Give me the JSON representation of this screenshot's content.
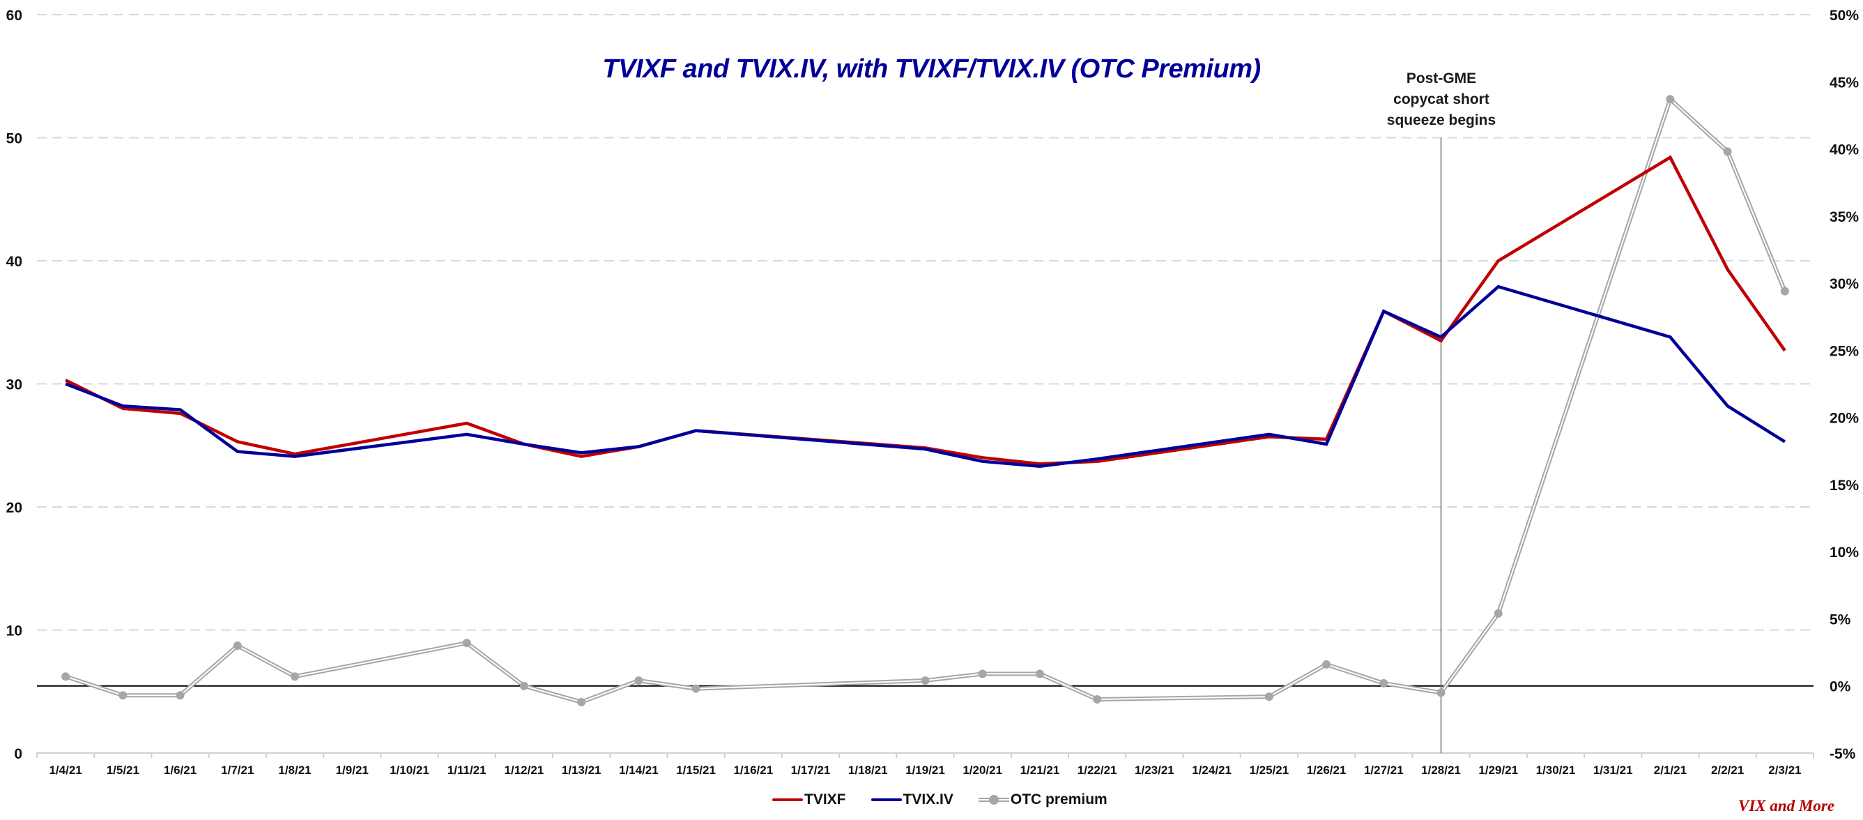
{
  "header": {
    "title": "TVIXF and TVIX.IV, with TVIXF/TVIX.IV (OTC Premium)"
  },
  "annotation": {
    "lines": [
      "Post-GME",
      "copycat short",
      "squeeze begins"
    ],
    "category": "1/28/21"
  },
  "legend": {
    "items": [
      {
        "label": "TVIXF",
        "color": "#C00000",
        "style": "line"
      },
      {
        "label": "TVIX.IV",
        "color": "#000099",
        "style": "line"
      },
      {
        "label": "OTC premium",
        "color": "#A6A6A6",
        "style": "double-line-marker"
      }
    ]
  },
  "watermark": "VIX and More",
  "colors": {
    "tvixf": "#C00000",
    "tvixiv": "#000099",
    "otc": "#A6A6A6",
    "grid": "#D9D9D9",
    "title": "#000099",
    "watermark": "#B30000"
  },
  "chart_data": {
    "type": "line",
    "title": "TVIXF and TVIX.IV, with TVIXF/TVIX.IV (OTC Premium)",
    "xlabel": "",
    "ylabel": "",
    "categories": [
      "1/4/21",
      "1/5/21",
      "1/6/21",
      "1/7/21",
      "1/8/21",
      "1/9/21",
      "1/10/21",
      "1/11/21",
      "1/12/21",
      "1/13/21",
      "1/14/21",
      "1/15/21",
      "1/16/21",
      "1/17/21",
      "1/18/21",
      "1/19/21",
      "1/20/21",
      "1/21/21",
      "1/22/21",
      "1/23/21",
      "1/24/21",
      "1/25/21",
      "1/26/21",
      "1/27/21",
      "1/28/21",
      "1/29/21",
      "1/30/21",
      "1/31/21",
      "2/1/21",
      "2/2/21",
      "2/3/21"
    ],
    "series": [
      {
        "name": "TVIXF",
        "axis": "left",
        "values": [
          30.3,
          28.0,
          27.6,
          25.3,
          24.3,
          null,
          null,
          26.8,
          25.1,
          24.1,
          24.9,
          26.2,
          null,
          null,
          null,
          24.8,
          24.0,
          23.5,
          23.7,
          null,
          null,
          25.7,
          25.5,
          35.9,
          33.5,
          40.0,
          null,
          null,
          48.4,
          39.3,
          32.7
        ]
      },
      {
        "name": "TVIX.IV",
        "axis": "left",
        "values": [
          30.0,
          28.2,
          27.9,
          24.5,
          24.1,
          null,
          null,
          25.9,
          25.1,
          24.4,
          24.9,
          26.2,
          null,
          null,
          null,
          24.7,
          23.7,
          23.3,
          23.9,
          null,
          null,
          25.9,
          25.1,
          35.9,
          33.8,
          37.9,
          null,
          null,
          33.8,
          28.2,
          25.3
        ]
      },
      {
        "name": "OTC premium",
        "axis": "right",
        "unit": "%",
        "values": [
          0.7,
          -0.7,
          -0.7,
          3.0,
          0.7,
          null,
          null,
          3.2,
          0.0,
          -1.2,
          0.4,
          -0.2,
          null,
          null,
          null,
          0.4,
          0.9,
          0.9,
          -1.0,
          null,
          null,
          -0.8,
          1.6,
          0.2,
          -0.5,
          5.4,
          null,
          null,
          43.7,
          39.8,
          29.4
        ]
      }
    ],
    "y_left": {
      "ylim": [
        0,
        60
      ],
      "ticks": [
        0,
        10,
        20,
        30,
        40,
        50,
        60
      ],
      "tick_labels": [
        "0",
        "10",
        "20",
        "30",
        "40",
        "50",
        "60"
      ]
    },
    "y_right": {
      "ylim": [
        -5,
        50
      ],
      "ticks": [
        -5,
        0,
        5,
        10,
        15,
        20,
        25,
        30,
        35,
        40,
        45,
        50
      ],
      "tick_labels": [
        "-5%",
        "0%",
        "5%",
        "10%",
        "15%",
        "20%",
        "25%",
        "30%",
        "35%",
        "40%",
        "45%",
        "50%"
      ]
    },
    "grid": "horizontal dashed on left-axis ticks",
    "zero_line_right_axis": true,
    "vertical_marker_at": "1/28/21",
    "legend_position": "bottom"
  }
}
